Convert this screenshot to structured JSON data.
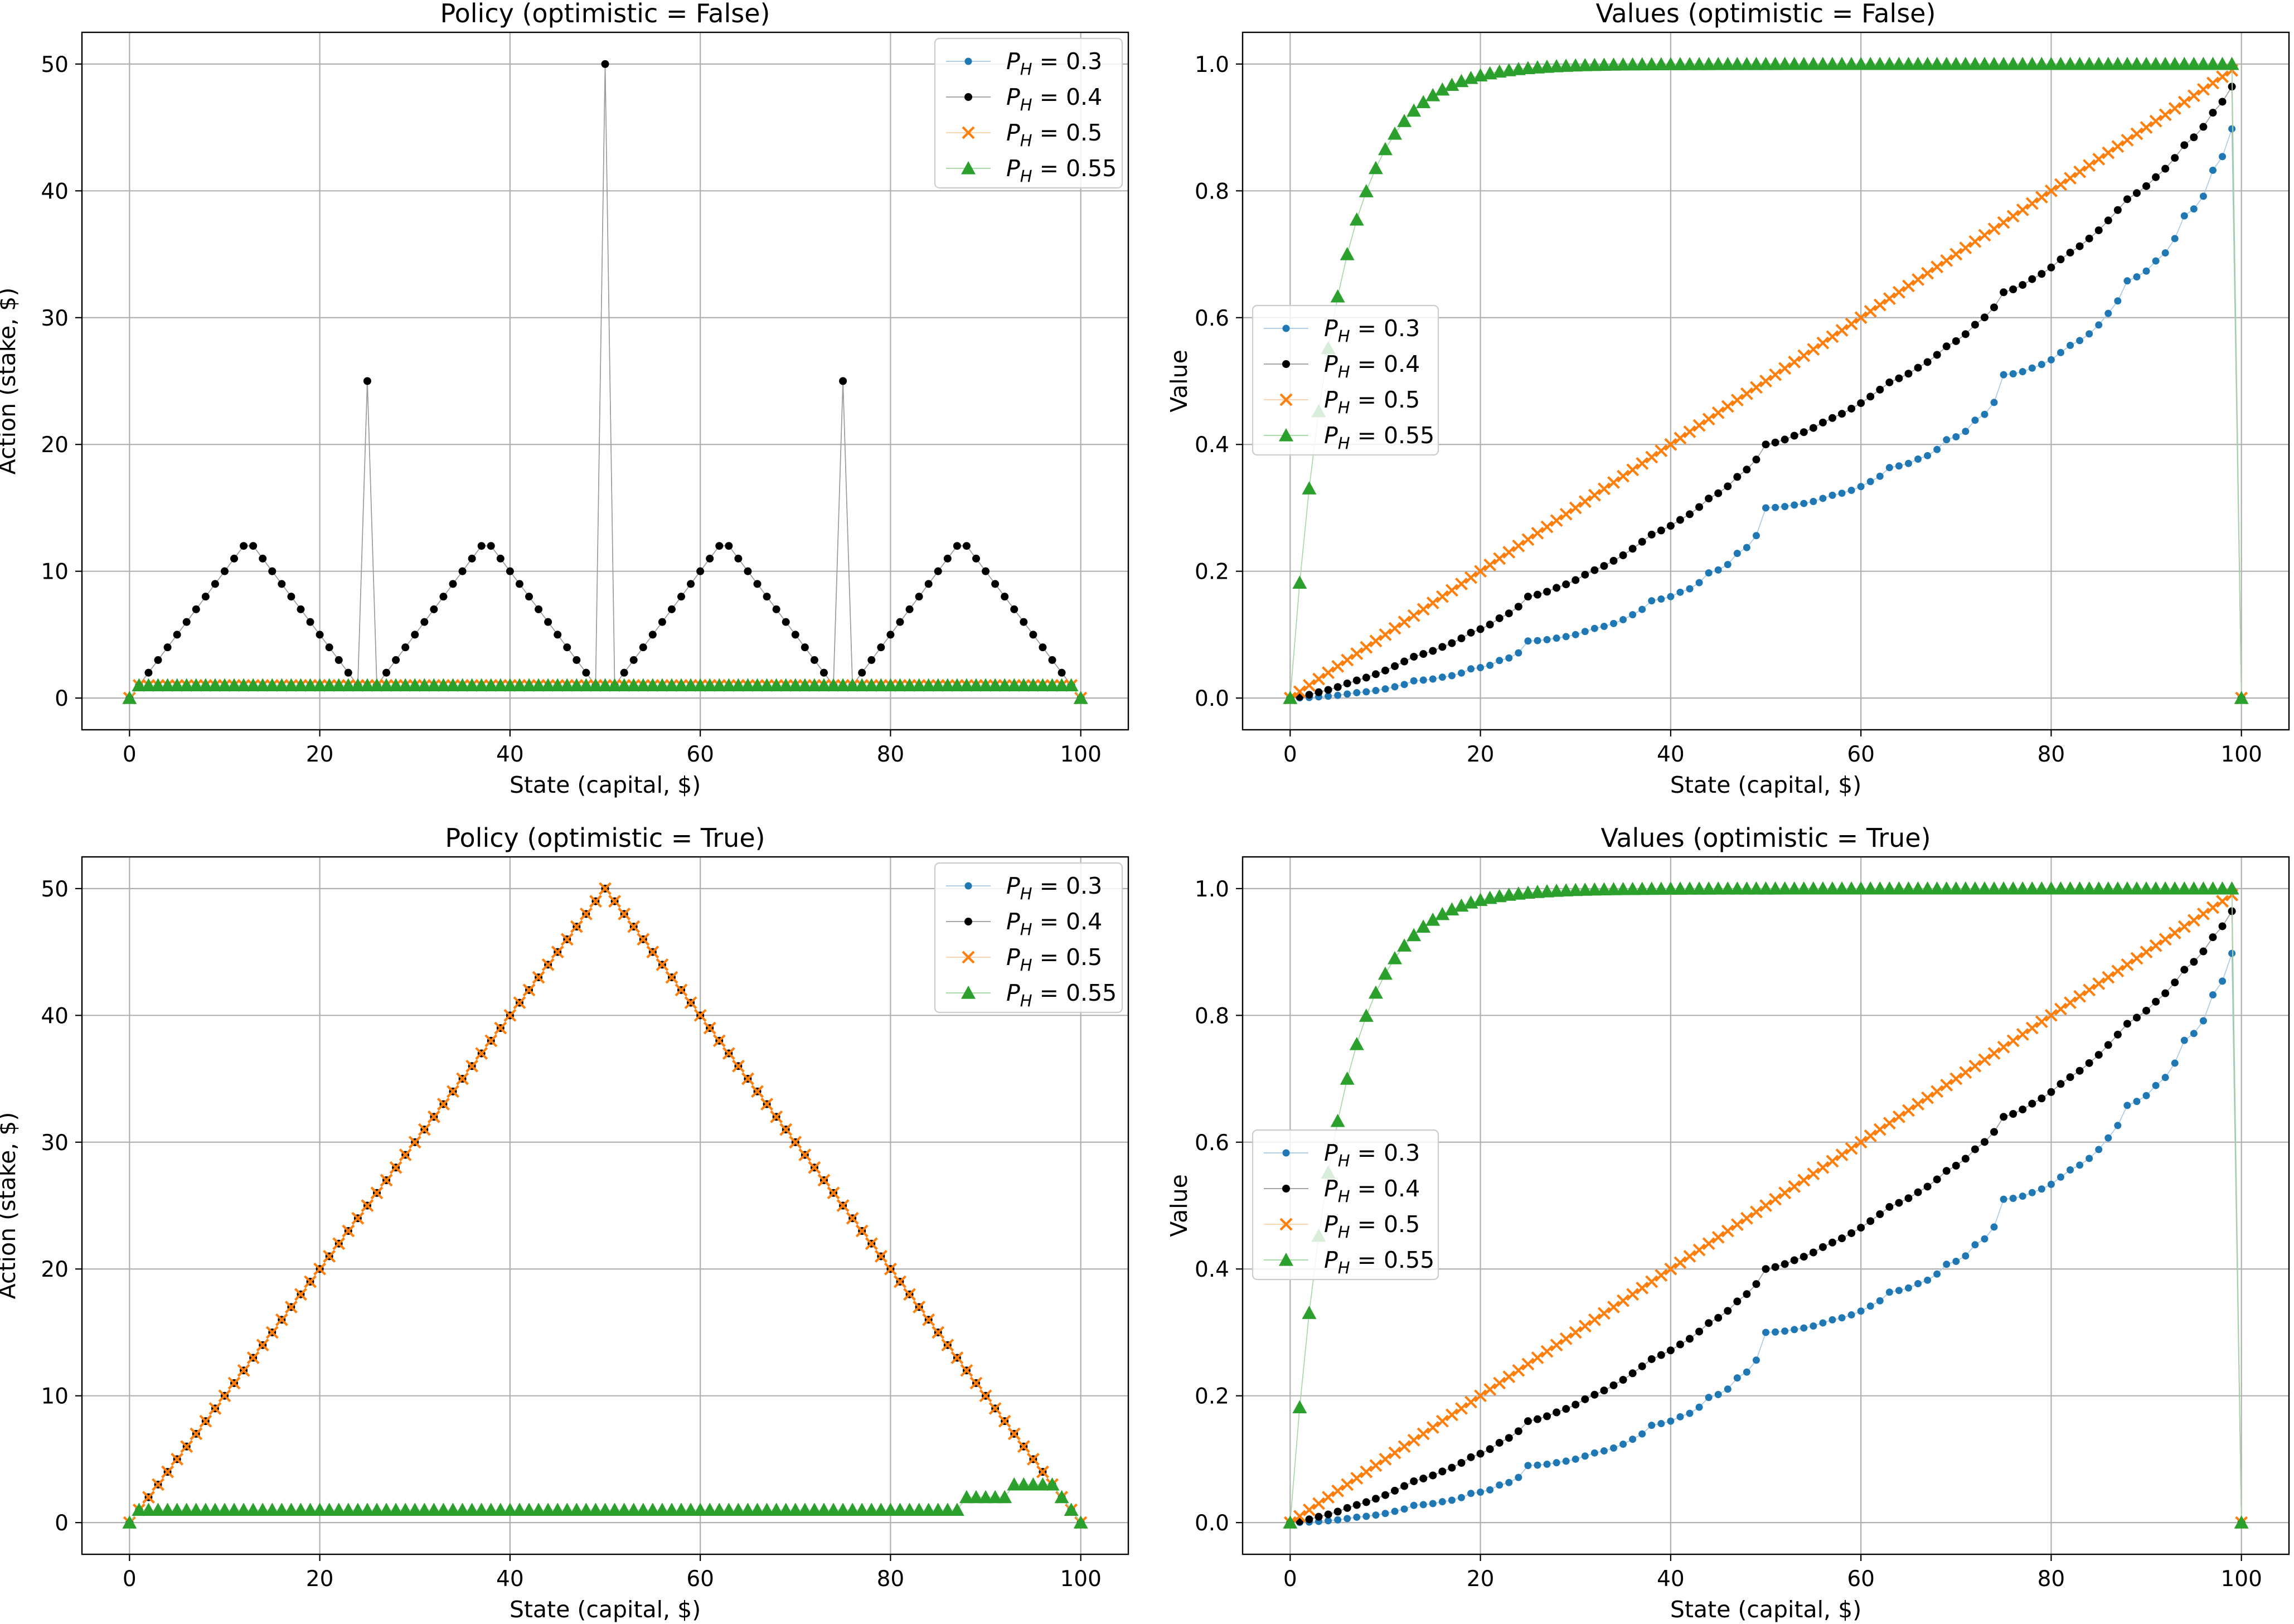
{
  "colors": {
    "p03": "#1f77b4",
    "p04": "#000000",
    "p05": "#ff7f0e",
    "p055": "#2ca02c",
    "p03_line": "#a6c8e6",
    "p04_line": "#9a9a9a",
    "p05_line": "#ffd0a8",
    "p055_line": "#9fd89f"
  },
  "chart_data": [
    {
      "id": "policy-false",
      "type": "line",
      "kind": "policy",
      "optimistic": false,
      "title": "Policy (optimistic = False)",
      "xlabel": "State (capital, $)",
      "ylabel": "Action (stake, $)",
      "xlim": [
        -5,
        105
      ],
      "ylim": [
        -2.5,
        52.5
      ],
      "xticks": [
        0,
        20,
        40,
        60,
        80,
        100
      ],
      "yticks": [
        0,
        10,
        20,
        30,
        40,
        50
      ],
      "grid": true,
      "legend": "top-right",
      "series": [
        {
          "name": "P_H = 0.3",
          "p": 0.3,
          "marker": "dot-small",
          "legend_sub": "H",
          "legend_value": "0.3"
        },
        {
          "name": "P_H = 0.4",
          "p": 0.4,
          "marker": "dot",
          "legend_sub": "H",
          "legend_value": "0.4"
        },
        {
          "name": "P_H = 0.5",
          "p": 0.5,
          "marker": "x",
          "legend_sub": "H",
          "legend_value": "0.5"
        },
        {
          "name": "P_H = 0.55",
          "p": 0.55,
          "marker": "triangle",
          "legend_sub": "H",
          "legend_value": "0.55"
        }
      ]
    },
    {
      "id": "values-false",
      "type": "line",
      "kind": "values",
      "optimistic": false,
      "title": "Values (optimistic = False)",
      "xlabel": "State (capital, $)",
      "ylabel": "Value",
      "xlim": [
        -5,
        105
      ],
      "ylim": [
        -0.05,
        1.05
      ],
      "xticks": [
        0,
        20,
        40,
        60,
        80,
        100
      ],
      "yticks": [
        0.0,
        0.2,
        0.4,
        0.6,
        0.8,
        1.0
      ],
      "grid": true,
      "legend": "center-left",
      "series": [
        {
          "name": "P_H = 0.3",
          "p": 0.3,
          "marker": "dot-small",
          "legend_sub": "H",
          "legend_value": "0.3"
        },
        {
          "name": "P_H = 0.4",
          "p": 0.4,
          "marker": "dot",
          "legend_sub": "H",
          "legend_value": "0.4"
        },
        {
          "name": "P_H = 0.5",
          "p": 0.5,
          "marker": "x",
          "legend_sub": "H",
          "legend_value": "0.5"
        },
        {
          "name": "P_H = 0.55",
          "p": 0.55,
          "marker": "triangle",
          "legend_sub": "H",
          "legend_value": "0.55"
        }
      ]
    },
    {
      "id": "policy-true",
      "type": "line",
      "kind": "policy",
      "optimistic": true,
      "title": "Policy (optimistic = True)",
      "xlabel": "State (capital, $)",
      "ylabel": "Action (stake, $)",
      "xlim": [
        -5,
        105
      ],
      "ylim": [
        -2.5,
        52.5
      ],
      "xticks": [
        0,
        20,
        40,
        60,
        80,
        100
      ],
      "yticks": [
        0,
        10,
        20,
        30,
        40,
        50
      ],
      "grid": true,
      "legend": "top-right",
      "series": [
        {
          "name": "P_H = 0.3",
          "p": 0.3,
          "marker": "dot-small",
          "legend_sub": "H",
          "legend_value": "0.3"
        },
        {
          "name": "P_H = 0.4",
          "p": 0.4,
          "marker": "dot",
          "legend_sub": "H",
          "legend_value": "0.4"
        },
        {
          "name": "P_H = 0.5",
          "p": 0.5,
          "marker": "x",
          "legend_sub": "H",
          "legend_value": "0.5"
        },
        {
          "name": "P_H = 0.55",
          "p": 0.55,
          "marker": "triangle",
          "legend_sub": "H",
          "legend_value": "0.55"
        }
      ]
    },
    {
      "id": "values-true",
      "type": "line",
      "kind": "values",
      "optimistic": true,
      "title": "Values (optimistic = True)",
      "xlabel": "State (capital, $)",
      "ylabel": "Value",
      "xlim": [
        -5,
        105
      ],
      "ylim": [
        -0.05,
        1.05
      ],
      "xticks": [
        0,
        20,
        40,
        60,
        80,
        100
      ],
      "yticks": [
        0.0,
        0.2,
        0.4,
        0.6,
        0.8,
        1.0
      ],
      "grid": true,
      "legend": "center-left",
      "series": [
        {
          "name": "P_H = 0.3",
          "p": 0.3,
          "marker": "dot-small",
          "legend_sub": "H",
          "legend_value": "0.3"
        },
        {
          "name": "P_H = 0.4",
          "p": 0.4,
          "marker": "dot",
          "legend_sub": "H",
          "legend_value": "0.4"
        },
        {
          "name": "P_H = 0.5",
          "p": 0.5,
          "marker": "x",
          "legend_sub": "H",
          "legend_value": "0.5"
        },
        {
          "name": "P_H = 0.55",
          "p": 0.55,
          "marker": "triangle",
          "legend_sub": "H",
          "legend_value": "0.55"
        }
      ]
    }
  ]
}
